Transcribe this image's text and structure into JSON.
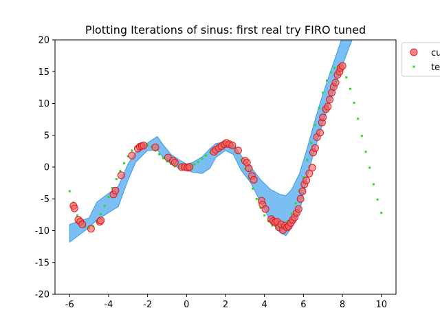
{
  "chart_data": {
    "type": "scatter",
    "title": "Plotting Iterations of sinus: first real try FIRO tuned",
    "xlabel": "",
    "ylabel": "",
    "xlim": [
      -6.75,
      10.75
    ],
    "ylim": [
      -20,
      20
    ],
    "xticks": [
      -6,
      -4,
      -2,
      0,
      2,
      4,
      6,
      8,
      10
    ],
    "yticks": [
      -20,
      -15,
      -10,
      -5,
      0,
      5,
      10,
      15,
      20
    ],
    "grid": false,
    "legend_placement": "outside-top-right",
    "legend": [
      "cu",
      "te"
    ],
    "colors": {
      "band": "#5aaef0",
      "band_edge": "#3a96e8",
      "current_fill": "#ff5a5a",
      "current_edge": "#d81c1c",
      "target": "#22dd22"
    },
    "confidence_band": {
      "x": [
        -6.0,
        -5.0,
        -4.6,
        -3.5,
        -3.0,
        -2.6,
        -2.0,
        -1.5,
        -1.2,
        -0.8,
        -0.3,
        0.0,
        0.3,
        0.8,
        1.2,
        1.5,
        2.0,
        2.4,
        2.8,
        3.3,
        3.8,
        4.3,
        4.8,
        5.1,
        5.4,
        5.8,
        6.2,
        6.6,
        7.0,
        7.5,
        8.0,
        8.3,
        8.5,
        9.2
      ],
      "upper": [
        -9.0,
        -8.0,
        -5.5,
        -3.0,
        0.5,
        2.3,
        3.8,
        4.8,
        3.5,
        2.0,
        1.0,
        0.5,
        0.7,
        1.6,
        2.9,
        3.7,
        4.0,
        3.6,
        1.8,
        0.0,
        -2.0,
        -3.5,
        -4.3,
        -4.5,
        -3.5,
        -1.0,
        3.0,
        7.5,
        11.5,
        16.0,
        20.5,
        23.0,
        24.0,
        27.0
      ],
      "lower": [
        -11.8,
        -9.5,
        -8.3,
        -6.2,
        -2.0,
        0.8,
        2.6,
        2.7,
        1.5,
        0.5,
        -0.3,
        -0.5,
        -0.8,
        -1.0,
        -0.2,
        1.5,
        2.6,
        2.0,
        -0.5,
        -2.5,
        -5.5,
        -8.5,
        -10.3,
        -10.8,
        -9.5,
        -7.0,
        -1.5,
        3.0,
        7.0,
        11.5,
        16.0,
        18.5,
        20.0,
        26.0
      ]
    },
    "series": [
      {
        "name": "cu",
        "style": "marker",
        "x": [
          -5.8,
          -5.75,
          -5.55,
          -5.45,
          -5.35,
          -4.9,
          -4.45,
          -4.4,
          -3.75,
          -3.65,
          -3.35,
          -2.8,
          -2.5,
          -2.4,
          -2.3,
          -2.2,
          -1.6,
          -0.95,
          -0.7,
          -0.6,
          -0.25,
          -0.1,
          0.05,
          0.15,
          1.4,
          1.5,
          1.65,
          1.8,
          1.95,
          2.05,
          2.2,
          2.35,
          2.65,
          3.0,
          3.1,
          3.2,
          3.35,
          3.45,
          3.85,
          3.9,
          4.05,
          4.35,
          4.45,
          4.55,
          4.65,
          4.75,
          4.85,
          4.95,
          5.05,
          5.15,
          5.25,
          5.35,
          5.45,
          5.55,
          5.65,
          5.75,
          5.85,
          5.95,
          6.05,
          6.15,
          6.3,
          6.45,
          6.5,
          6.6,
          6.7,
          6.85,
          6.95,
          7.0,
          7.15,
          7.25,
          7.35,
          7.45,
          7.55,
          7.65,
          7.75,
          7.85,
          7.9,
          8.0
        ],
        "y": [
          -6.1,
          -6.5,
          -8.3,
          -8.6,
          -9.0,
          -9.7,
          -8.6,
          -8.4,
          -4.3,
          -3.7,
          -1.3,
          1.8,
          2.9,
          3.2,
          3.3,
          3.4,
          3.1,
          1.5,
          1.0,
          0.7,
          0.0,
          0.0,
          -0.1,
          0.0,
          2.4,
          2.7,
          3.0,
          3.3,
          3.6,
          3.8,
          3.6,
          3.4,
          2.6,
          1.0,
          0.7,
          -0.2,
          -1.4,
          -2.0,
          -5.3,
          -5.9,
          -6.6,
          -8.2,
          -8.5,
          -8.7,
          -8.6,
          -9.5,
          -9.0,
          -9.9,
          -9.2,
          -9.5,
          -9.3,
          -8.8,
          -8.3,
          -7.9,
          -7.2,
          -6.6,
          -5.0,
          -3.8,
          -2.7,
          -2.1,
          -1.0,
          -0.1,
          2.3,
          3.0,
          4.7,
          5.4,
          7.0,
          7.8,
          9.1,
          9.5,
          10.6,
          11.7,
          12.6,
          13.3,
          14.5,
          15.0,
          15.6,
          15.9
        ]
      },
      {
        "name": "te",
        "style": "dots",
        "x": [
          -6.0,
          -5.8,
          -5.6,
          -5.4,
          -5.2,
          -5.0,
          -4.8,
          -4.6,
          -4.4,
          -4.2,
          -4.0,
          -3.8,
          -3.6,
          -3.4,
          -3.2,
          -3.0,
          -2.8,
          -2.6,
          -2.4,
          -2.2,
          -2.0,
          -1.8,
          -1.6,
          -1.4,
          -1.2,
          -1.0,
          -0.8,
          -0.6,
          -0.4,
          -0.2,
          0.0,
          0.2,
          0.4,
          0.6,
          0.8,
          1.0,
          1.2,
          1.4,
          1.6,
          1.8,
          2.0,
          2.2,
          2.4,
          2.6,
          2.8,
          3.0,
          3.2,
          3.4,
          3.6,
          3.8,
          4.0,
          4.2,
          4.4,
          4.6,
          4.8,
          5.0,
          5.2,
          5.4,
          5.6,
          5.8,
          6.0,
          6.2,
          6.4,
          6.6,
          6.8,
          7.0,
          7.2,
          7.4,
          7.6,
          7.8,
          8.0,
          8.2,
          8.4,
          8.6,
          8.8,
          9.0,
          9.2,
          9.4,
          9.6,
          9.8,
          10.0
        ],
        "y": [
          -3.8,
          -5.6,
          -7.6,
          -8.7,
          -9.4,
          -9.6,
          -9.3,
          -8.6,
          -7.4,
          -6.1,
          -4.7,
          -3.3,
          -1.9,
          -0.6,
          0.6,
          1.7,
          2.6,
          3.2,
          3.5,
          3.6,
          3.5,
          3.2,
          2.6,
          2.0,
          1.4,
          0.9,
          0.5,
          0.1,
          0.0,
          -0.1,
          0.0,
          0.2,
          0.4,
          0.8,
          1.3,
          1.8,
          2.3,
          2.8,
          3.2,
          3.5,
          3.6,
          3.5,
          3.0,
          2.2,
          1.1,
          -0.3,
          -1.8,
          -3.4,
          -5.0,
          -6.4,
          -7.6,
          -8.5,
          -9.2,
          -9.6,
          -9.6,
          -9.3,
          -8.5,
          -7.3,
          -5.7,
          -3.8,
          -1.6,
          1.1,
          3.8,
          6.6,
          9.3,
          11.7,
          13.6,
          14.9,
          15.6,
          15.7,
          15.3,
          14.1,
          12.3,
          10.1,
          7.6,
          4.9,
          2.4,
          -0.1,
          -2.7,
          -5.1,
          -7.2
        ]
      }
    ]
  }
}
